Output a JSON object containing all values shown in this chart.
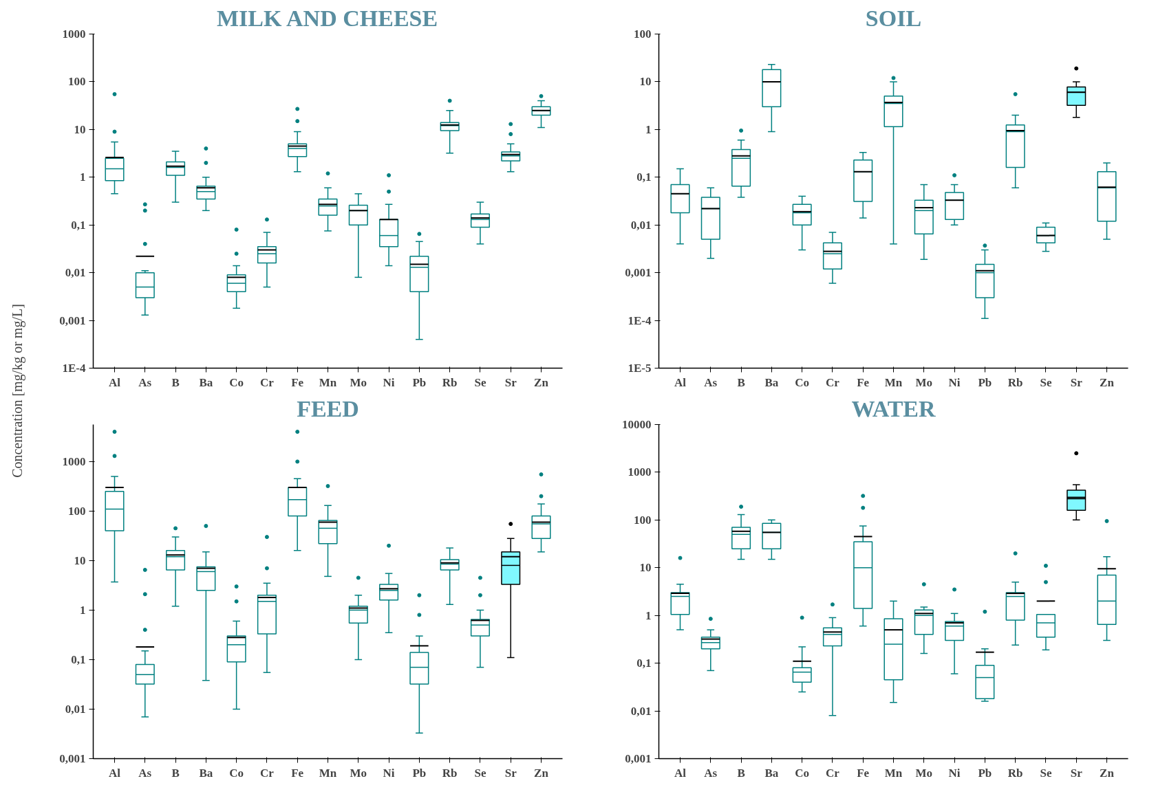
{
  "chart_data": [
    {
      "type": "box",
      "title": "MILK AND CHEESE",
      "ylabel": "Concentration [mg/kg or mg/L]",
      "log": "y",
      "grid": false,
      "categories": [
        "Al",
        "As",
        "B",
        "Ba",
        "Co",
        "Cr",
        "Fe",
        "Mn",
        "Mo",
        "Ni",
        "Pb",
        "Rb",
        "Se",
        "Sr",
        "Zn"
      ],
      "ylim": [
        0.0001,
        1000
      ],
      "yticks": [
        {
          "value": 0.0001,
          "label": "1E-4"
        },
        {
          "value": 0.001,
          "label": "0,001"
        },
        {
          "value": 0.01,
          "label": "0,01"
        },
        {
          "value": 0.1,
          "label": "0,1"
        },
        1,
        10,
        100,
        1000
      ],
      "colors": [
        "#ffffff",
        "#ffffff",
        "#ffffff",
        "#ffffff",
        "#ffffff",
        "#ffffff",
        "#ffffff",
        "#ffffff",
        "#ffffff",
        "#ffffff",
        "#ffffff",
        "#ffffff",
        "#ffffff",
        "#ffffff",
        "#ffffff"
      ],
      "boxes": [
        {
          "low": 0.45,
          "q1": 0.85,
          "median": 1.5,
          "q3": 2.5,
          "high": 5.5,
          "mean": 2.6,
          "outliers": [
            9,
            55
          ]
        },
        {
          "low": 0.0013,
          "q1": 0.003,
          "median": 0.005,
          "q3": 0.01,
          "high": 0.011,
          "mean": 0.022,
          "outliers": [
            0.04,
            0.2,
            0.27
          ]
        },
        {
          "low": 0.3,
          "q1": 1.1,
          "median": 1.6,
          "q3": 2.1,
          "high": 3.5,
          "mean": 1.7
        },
        {
          "low": 0.2,
          "q1": 0.35,
          "median": 0.5,
          "q3": 0.65,
          "high": 1.0,
          "mean": 0.6,
          "outliers": [
            2,
            4
          ]
        },
        {
          "low": 0.0018,
          "q1": 0.004,
          "median": 0.006,
          "q3": 0.009,
          "high": 0.014,
          "mean": 0.008,
          "outliers": [
            0.025,
            0.08
          ]
        },
        {
          "low": 0.005,
          "q1": 0.016,
          "median": 0.025,
          "q3": 0.035,
          "high": 0.07,
          "mean": 0.03,
          "outliers": [
            0.13
          ]
        },
        {
          "low": 1.3,
          "q1": 2.7,
          "median": 4,
          "q3": 5,
          "high": 9,
          "mean": 4.5,
          "outliers": [
            15,
            27
          ]
        },
        {
          "low": 0.075,
          "q1": 0.16,
          "median": 0.25,
          "q3": 0.35,
          "high": 0.6,
          "mean": 0.27,
          "outliers": [
            1.2
          ]
        },
        {
          "low": 0.008,
          "q1": 0.1,
          "median": 0.2,
          "q3": 0.26,
          "high": 0.45,
          "mean": 0.2
        },
        {
          "low": 0.014,
          "q1": 0.035,
          "median": 0.06,
          "q3": 0.13,
          "high": 0.27,
          "mean": 0.13,
          "outliers": [
            0.5,
            1.1
          ]
        },
        {
          "low": 0.0004,
          "q1": 0.004,
          "median": 0.013,
          "q3": 0.022,
          "high": 0.045,
          "mean": 0.015,
          "outliers": [
            0.065
          ]
        },
        {
          "low": 3.2,
          "q1": 9.5,
          "median": 12,
          "q3": 14,
          "high": 25,
          "mean": 12.5,
          "outliers": [
            40
          ]
        },
        {
          "low": 0.04,
          "q1": 0.09,
          "median": 0.13,
          "q3": 0.17,
          "high": 0.3,
          "mean": 0.14
        },
        {
          "low": 1.3,
          "q1": 2.2,
          "median": 2.8,
          "q3": 3.4,
          "high": 5,
          "mean": 3,
          "outliers": [
            8,
            13
          ]
        },
        {
          "low": 11,
          "q1": 20,
          "median": 25,
          "q3": 30,
          "high": 40,
          "mean": 25,
          "outliers": [
            50
          ]
        }
      ]
    },
    {
      "type": "box",
      "title": "SOIL",
      "log": "y",
      "grid": false,
      "categories": [
        "Al",
        "As",
        "B",
        "Ba",
        "Co",
        "Cr",
        "Fe",
        "Mn",
        "Mo",
        "Ni",
        "Pb",
        "Rb",
        "Se",
        "Sr",
        "Zn"
      ],
      "ylim": [
        1e-05,
        100
      ],
      "yticks": [
        {
          "value": 1e-05,
          "label": "1E-5"
        },
        {
          "value": 0.0001,
          "label": "1E-4"
        },
        {
          "value": 0.001,
          "label": "0,001"
        },
        {
          "value": 0.01,
          "label": "0,01"
        },
        {
          "value": 0.1,
          "label": "0,1"
        },
        1,
        10,
        100
      ],
      "colors": [
        "#ffffff",
        "#ffffff",
        "#ffffff",
        "#ffffff",
        "#ffffff",
        "#ffffff",
        "#ffffff",
        "#ffffff",
        "#ffffff",
        "#ffffff",
        "#ffffff",
        "#ffffff",
        "#ffffff",
        "#80f8ff",
        "#ffffff"
      ],
      "boxes": [
        {
          "low": 0.004,
          "q1": 0.018,
          "median": 0.045,
          "q3": 0.07,
          "high": 0.15,
          "mean": 0.045
        },
        {
          "low": 0.002,
          "q1": 0.005,
          "median": 0.022,
          "q3": 0.038,
          "high": 0.06,
          "mean": 0.022
        },
        {
          "low": 0.038,
          "q1": 0.065,
          "median": 0.25,
          "q3": 0.38,
          "high": 0.6,
          "mean": 0.28,
          "outliers": [
            0.95
          ]
        },
        {
          "low": 0.9,
          "q1": 3,
          "median": 10,
          "q3": 18,
          "high": 23,
          "mean": 10
        },
        {
          "low": 0.003,
          "q1": 0.01,
          "median": 0.018,
          "q3": 0.027,
          "high": 0.04,
          "mean": 0.019
        },
        {
          "low": 0.0006,
          "q1": 0.0012,
          "median": 0.0025,
          "q3": 0.0042,
          "high": 0.007,
          "mean": 0.0028
        },
        {
          "low": 0.014,
          "q1": 0.031,
          "median": 0.13,
          "q3": 0.23,
          "high": 0.33,
          "mean": 0.13
        },
        {
          "low": 0.004,
          "q1": 1.15,
          "median": 3.5,
          "q3": 5,
          "high": 10,
          "mean": 3.7,
          "outliers": [
            12
          ]
        },
        {
          "low": 0.0019,
          "q1": 0.0065,
          "median": 0.02,
          "q3": 0.033,
          "high": 0.07,
          "mean": 0.023
        },
        {
          "low": 0.01,
          "q1": 0.013,
          "median": 0.033,
          "q3": 0.048,
          "high": 0.07,
          "mean": 0.033,
          "outliers": [
            0.11
          ]
        },
        {
          "low": 0.00011,
          "q1": 0.0003,
          "median": 0.001,
          "q3": 0.0015,
          "high": 0.003,
          "mean": 0.0011,
          "outliers": [
            0.0037
          ]
        },
        {
          "low": 0.06,
          "q1": 0.16,
          "median": 0.9,
          "q3": 1.25,
          "high": 2,
          "mean": 0.95,
          "outliers": [
            5.5
          ]
        },
        {
          "low": 0.0028,
          "q1": 0.0042,
          "median": 0.006,
          "q3": 0.009,
          "high": 0.011,
          "mean": 0.006
        },
        {
          "low": 1.8,
          "q1": 3.2,
          "median": 6,
          "q3": 7.8,
          "high": 10,
          "mean": 6,
          "outliers": [
            19
          ]
        },
        {
          "low": 0.005,
          "q1": 0.012,
          "median": 0.06,
          "q3": 0.13,
          "high": 0.2,
          "mean": 0.062
        }
      ]
    },
    {
      "type": "box",
      "title": "FEED",
      "log": "y",
      "grid": false,
      "categories": [
        "Al",
        "As",
        "B",
        "Ba",
        "Co",
        "Cr",
        "Fe",
        "Mn",
        "Mo",
        "Ni",
        "Pb",
        "Rb",
        "Se",
        "Sr",
        "Zn"
      ],
      "ylim": [
        0.001,
        5600
      ],
      "yticks": [
        {
          "value": 0.001,
          "label": "0,001"
        },
        {
          "value": 0.01,
          "label": "0,01"
        },
        {
          "value": 0.1,
          "label": "0,1"
        },
        1,
        10,
        100,
        1000
      ],
      "colors": [
        "#ffffff",
        "#ffffff",
        "#ffffff",
        "#ffffff",
        "#ffffff",
        "#ffffff",
        "#ffffff",
        "#ffffff",
        "#ffffff",
        "#ffffff",
        "#ffffff",
        "#ffffff",
        "#ffffff",
        "#80f8ff",
        "#ffffff"
      ],
      "boxes": [
        {
          "low": 3.7,
          "q1": 40,
          "median": 110,
          "q3": 250,
          "high": 500,
          "mean": 300,
          "outliers": [
            1300,
            4000
          ]
        },
        {
          "low": 0.007,
          "q1": 0.032,
          "median": 0.05,
          "q3": 0.08,
          "high": 0.15,
          "mean": 0.18,
          "outliers": [
            0.4,
            2.1,
            6.5
          ]
        },
        {
          "low": 1.2,
          "q1": 6.5,
          "median": 12,
          "q3": 16,
          "high": 30,
          "mean": 13,
          "outliers": [
            45
          ]
        },
        {
          "low": 0.038,
          "q1": 2.5,
          "median": 6,
          "q3": 7.5,
          "high": 15,
          "mean": 7,
          "outliers": [
            50
          ]
        },
        {
          "low": 0.01,
          "q1": 0.09,
          "median": 0.2,
          "q3": 0.3,
          "high": 0.6,
          "mean": 0.28,
          "outliers": [
            1.5,
            3
          ]
        },
        {
          "low": 0.055,
          "q1": 0.33,
          "median": 1.5,
          "q3": 2,
          "high": 3.5,
          "mean": 1.8,
          "outliers": [
            7,
            30
          ]
        },
        {
          "low": 16,
          "q1": 80,
          "median": 170,
          "q3": 300,
          "high": 450,
          "mean": 300,
          "outliers": [
            1000,
            4000
          ]
        },
        {
          "low": 4.8,
          "q1": 22,
          "median": 45,
          "q3": 65,
          "high": 130,
          "mean": 60,
          "outliers": [
            320
          ]
        },
        {
          "low": 0.1,
          "q1": 0.55,
          "median": 1,
          "q3": 1.2,
          "high": 2,
          "mean": 1.1,
          "outliers": [
            4.5
          ]
        },
        {
          "low": 0.35,
          "q1": 1.6,
          "median": 2.5,
          "q3": 3.3,
          "high": 5.5,
          "mean": 2.7,
          "outliers": [
            20
          ]
        },
        {
          "low": 0.0033,
          "q1": 0.032,
          "median": 0.07,
          "q3": 0.14,
          "high": 0.3,
          "mean": 0.19,
          "outliers": [
            0.8,
            2
          ]
        },
        {
          "low": 1.3,
          "q1": 6.5,
          "median": 8.5,
          "q3": 10.5,
          "high": 18,
          "mean": 9
        },
        {
          "low": 0.07,
          "q1": 0.3,
          "median": 0.5,
          "q3": 0.65,
          "high": 1,
          "mean": 0.62,
          "outliers": [
            2,
            4.5
          ]
        },
        {
          "low": 0.11,
          "q1": 3.3,
          "median": 8,
          "q3": 15,
          "high": 28,
          "mean": 12,
          "outliers": [
            55
          ]
        },
        {
          "low": 15,
          "q1": 28,
          "median": 55,
          "q3": 80,
          "high": 140,
          "mean": 60,
          "outliers": [
            200,
            550
          ]
        }
      ]
    },
    {
      "type": "box",
      "title": "WATER",
      "log": "y",
      "grid": false,
      "categories": [
        "Al",
        "As",
        "B",
        "Ba",
        "Co",
        "Cr",
        "Fe",
        "Mn",
        "Mo",
        "Ni",
        "Pb",
        "Rb",
        "Se",
        "Sr",
        "Zn"
      ],
      "ylim": [
        0.001,
        10000
      ],
      "yticks": [
        {
          "value": 0.001,
          "label": "0,001"
        },
        {
          "value": 0.01,
          "label": "0,01"
        },
        {
          "value": 0.1,
          "label": "0,1"
        },
        1,
        10,
        100,
        1000,
        10000
      ],
      "colors": [
        "#ffffff",
        "#ffffff",
        "#ffffff",
        "#ffffff",
        "#ffffff",
        "#ffffff",
        "#ffffff",
        "#ffffff",
        "#ffffff",
        "#ffffff",
        "#ffffff",
        "#ffffff",
        "#ffffff",
        "#80f8ff",
        "#ffffff"
      ],
      "boxes": [
        {
          "low": 0.5,
          "q1": 1.05,
          "median": 2.5,
          "q3": 3,
          "high": 4.5,
          "mean": 2.9,
          "outliers": [
            16
          ]
        },
        {
          "low": 0.07,
          "q1": 0.2,
          "median": 0.27,
          "q3": 0.35,
          "high": 0.5,
          "mean": 0.32,
          "outliers": [
            0.85
          ]
        },
        {
          "low": 15,
          "q1": 25,
          "median": 50,
          "q3": 70,
          "high": 130,
          "mean": 58,
          "outliers": [
            190
          ]
        },
        {
          "low": 15,
          "q1": 25,
          "median": 55,
          "q3": 85,
          "high": 100,
          "mean": 55
        },
        {
          "low": 0.025,
          "q1": 0.04,
          "median": 0.065,
          "q3": 0.08,
          "high": 0.22,
          "mean": 0.11,
          "outliers": [
            0.9
          ]
        },
        {
          "low": 0.008,
          "q1": 0.23,
          "median": 0.4,
          "q3": 0.55,
          "high": 0.9,
          "mean": 0.45,
          "outliers": [
            1.7
          ]
        },
        {
          "low": 0.6,
          "q1": 1.4,
          "median": 10,
          "q3": 35,
          "high": 75,
          "mean": 45,
          "outliers": [
            180,
            320
          ]
        },
        {
          "low": 0.015,
          "q1": 0.045,
          "median": 0.25,
          "q3": 0.85,
          "high": 2,
          "mean": 0.5
        },
        {
          "low": 0.16,
          "q1": 0.4,
          "median": 1,
          "q3": 1.3,
          "high": 1.5,
          "mean": 1.1,
          "outliers": [
            4.5
          ]
        },
        {
          "low": 0.06,
          "q1": 0.3,
          "median": 0.6,
          "q3": 0.75,
          "high": 1.1,
          "mean": 0.7,
          "outliers": [
            3.5
          ]
        },
        {
          "low": 0.016,
          "q1": 0.018,
          "median": 0.05,
          "q3": 0.09,
          "high": 0.2,
          "mean": 0.17,
          "outliers": [
            1.2
          ]
        },
        {
          "low": 0.24,
          "q1": 0.8,
          "median": 2.5,
          "q3": 3,
          "high": 5,
          "mean": 2.9,
          "outliers": [
            20
          ]
        },
        {
          "low": 0.19,
          "q1": 0.35,
          "median": 0.7,
          "q3": 1.05,
          "high": 1.05,
          "mean": 2,
          "outliers": [
            5,
            11
          ]
        },
        {
          "low": 100,
          "q1": 160,
          "median": 300,
          "q3": 420,
          "high": 550,
          "mean": 280,
          "outliers": [
            2500
          ]
        },
        {
          "low": 0.3,
          "q1": 0.65,
          "median": 2,
          "q3": 7,
          "high": 17,
          "mean": 9.5,
          "outliers": [
            95
          ]
        }
      ]
    }
  ]
}
